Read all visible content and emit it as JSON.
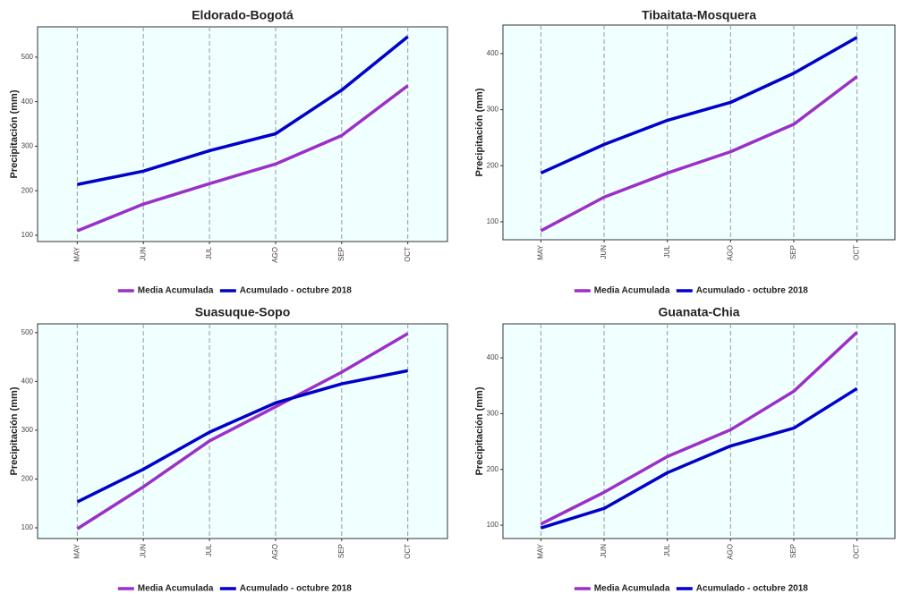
{
  "chart_data": [
    {
      "type": "line",
      "title": "Eldorado-Bogotá",
      "y_label": "Precipitación (mm)",
      "categories": [
        "MAY",
        "JUN",
        "JUL",
        "AGO",
        "SEP",
        "OCT"
      ],
      "series": [
        {
          "name": "Media Acumulada",
          "color": "#9b30c8",
          "values": [
            110,
            170,
            216,
            260,
            324,
            436
          ]
        },
        {
          "name": "Acumulado - octubre 2018",
          "color": "#0000c8",
          "values": [
            214,
            244,
            290,
            328,
            426,
            546
          ]
        }
      ],
      "ylim": [
        86,
        568
      ],
      "yticks": [
        100,
        200,
        300,
        400,
        500
      ],
      "grid": true
    },
    {
      "type": "line",
      "title": "Tibaitata-Mosquera",
      "y_label": "Precipitación (mm)",
      "categories": [
        "MAY",
        "JUN",
        "JUL",
        "AGO",
        "SEP",
        "OCT"
      ],
      "series": [
        {
          "name": "Media Acumulada",
          "color": "#9b30c8",
          "values": [
            84,
            144,
            187,
            225,
            274,
            359
          ]
        },
        {
          "name": "Acumulado - octubre 2018",
          "color": "#0000c8",
          "values": [
            187,
            238,
            281,
            313,
            365,
            429
          ]
        }
      ],
      "ylim": [
        68,
        451
      ],
      "yticks": [
        100,
        200,
        300,
        400
      ],
      "grid": true
    },
    {
      "type": "line",
      "title": "Suasuque-Sopo",
      "y_label": "Precipitación (mm)",
      "categories": [
        "MAY",
        "JUN",
        "JUL",
        "AGO",
        "SEP",
        "OCT"
      ],
      "series": [
        {
          "name": "Media Acumulada",
          "color": "#9b30c8",
          "values": [
            98,
            184,
            278,
            348,
            419,
            498
          ]
        },
        {
          "name": "Acumulado - octubre 2018",
          "color": "#0000c8",
          "values": [
            153,
            220,
            296,
            356,
            395,
            422
          ]
        }
      ],
      "ylim": [
        78,
        518
      ],
      "yticks": [
        100,
        200,
        300,
        400,
        500
      ],
      "grid": true
    },
    {
      "type": "line",
      "title": "Guanata-Chia",
      "y_label": "Precipitación (mm)",
      "categories": [
        "MAY",
        "JUN",
        "JUL",
        "AGO",
        "SEP",
        "OCT"
      ],
      "series": [
        {
          "name": "Media Acumulada",
          "color": "#9b30c8",
          "values": [
            102,
            159,
            223,
            271,
            340,
            446
          ]
        },
        {
          "name": "Acumulado - octubre 2018",
          "color": "#0000c8",
          "values": [
            95,
            130,
            194,
            242,
            274,
            345
          ]
        }
      ],
      "ylim": [
        76,
        461
      ],
      "yticks": [
        100,
        200,
        300,
        400
      ],
      "grid": true
    }
  ]
}
